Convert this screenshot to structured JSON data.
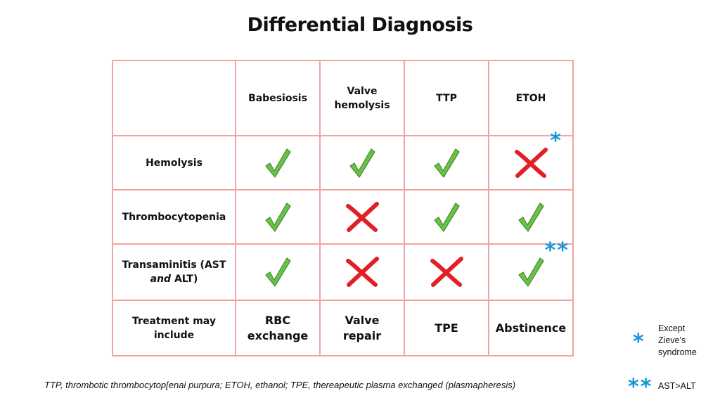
{
  "title": "Differential Diagnosis",
  "table": {
    "columns": [
      "",
      "Babesiosis",
      "Valve hemolysis",
      "TTP",
      "ETOH"
    ],
    "rows": [
      {
        "label": "Hemolysis",
        "cells": [
          "check",
          "check",
          "check",
          "cross"
        ],
        "annotation": {
          "col": 4,
          "text": "*"
        }
      },
      {
        "label": "Thrombocytopenia",
        "cells": [
          "check",
          "cross",
          "check",
          "check"
        ]
      },
      {
        "label_parts": [
          "Transaminitis (AST",
          "and",
          "ALT)"
        ],
        "cells": [
          "check",
          "cross",
          "cross",
          "check"
        ],
        "annotation": {
          "col": 4,
          "text": "**"
        }
      },
      {
        "label": "Treatment may include",
        "treatments": [
          "RBC exchange",
          "Valve repair",
          "TPE",
          "Abstinence"
        ]
      }
    ]
  },
  "colors": {
    "check": "#6cc04a",
    "cross": "#e21f26",
    "star": "#1496d8",
    "border": "#f2a3a3"
  },
  "footnote": "TTP, thrombotic thrombocytop[enai purpura; ETOH, ethanol; TPE, thereapeutic plasma exchanged (plasmapheresis)",
  "legend": [
    {
      "symbol": "*",
      "text": "Except Zieve's syndrome"
    },
    {
      "symbol": "**",
      "text": "AST>ALT"
    }
  ]
}
